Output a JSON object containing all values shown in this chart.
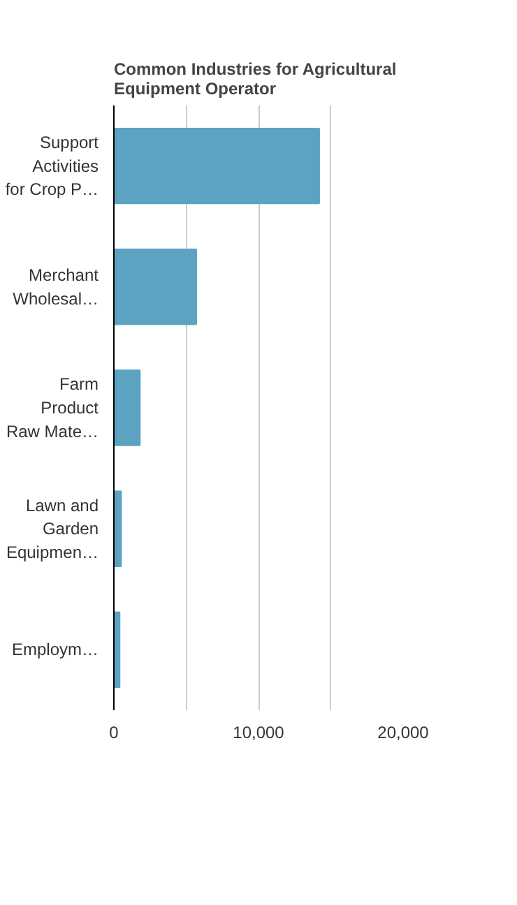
{
  "chart_data": {
    "type": "bar",
    "orientation": "horizontal",
    "title": "Common Industries for Agricultural Equipment Operator",
    "categories": [
      "Support Activities for Crop P…",
      "Merchant Wholesal…",
      "Farm Product Raw Mate…",
      "Lawn and Garden Equipmen…",
      "Employm…"
    ],
    "values": [
      14200,
      5700,
      1800,
      500,
      400
    ],
    "color": "#5ba3c1",
    "xlim": [
      0,
      20000
    ],
    "xticks": [
      0,
      {
        "value": 5000,
        "label": null
      },
      {
        "value": 10000,
        "label": "10,000"
      },
      {
        "value": 15000,
        "label": null
      },
      {
        "value": 20000,
        "label": "20,000"
      }
    ],
    "grid": "x"
  }
}
